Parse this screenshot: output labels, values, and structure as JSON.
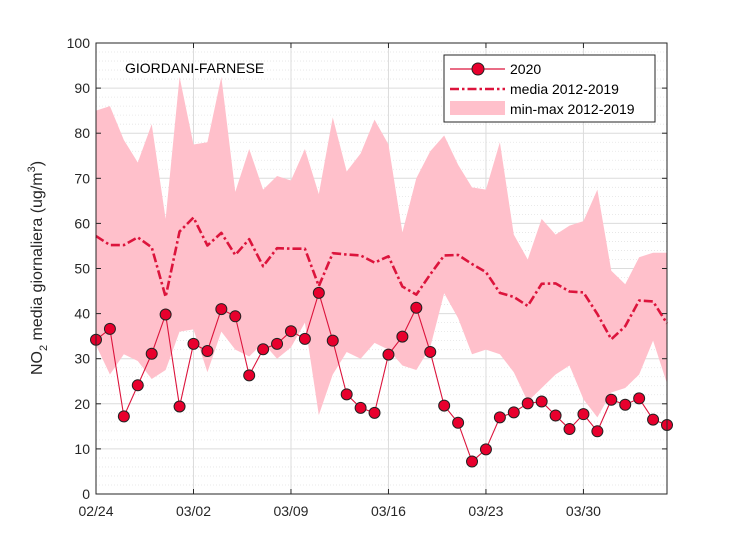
{
  "chart_data": {
    "type": "line",
    "title": "GIORDANI-FARNESE",
    "ylabel_parts": [
      "NO",
      "2",
      " media giornaliera (ug/m",
      "3",
      ")"
    ],
    "xlabel": "",
    "ylim": [
      0,
      100
    ],
    "yticks": [
      0,
      10,
      20,
      30,
      40,
      50,
      60,
      70,
      80,
      90,
      100
    ],
    "xlim": [
      "02/24",
      "04/05"
    ],
    "xticks": [
      {
        "date": "02/24",
        "label": "02/24"
      },
      {
        "date": "03/02",
        "label": "03/02"
      },
      {
        "date": "03/09",
        "label": "03/09"
      },
      {
        "date": "03/16",
        "label": "03/16"
      },
      {
        "date": "03/23",
        "label": "03/23"
      },
      {
        "date": "03/30",
        "label": "03/30"
      }
    ],
    "grid": true,
    "legend_position": "top-right",
    "colors": {
      "line_2020": "#dc143c",
      "marker_2020": "#e8002d",
      "mean": "#dc143c",
      "band": "#ffc0cb"
    },
    "x": [
      "02/24",
      "02/25",
      "02/26",
      "02/27",
      "02/28",
      "02/29",
      "03/01",
      "03/02",
      "03/03",
      "03/04",
      "03/05",
      "03/06",
      "03/07",
      "03/08",
      "03/09",
      "03/10",
      "03/11",
      "03/12",
      "03/13",
      "03/14",
      "03/15",
      "03/16",
      "03/17",
      "03/18",
      "03/19",
      "03/20",
      "03/21",
      "03/22",
      "03/23",
      "03/24",
      "03/25",
      "03/26",
      "03/27",
      "03/28",
      "03/29",
      "03/30",
      "03/31",
      "04/01",
      "04/02",
      "04/03",
      "04/04",
      "04/05"
    ],
    "series": [
      {
        "name": "2020",
        "style": "line-marker",
        "values": [
          34.2,
          36.6,
          17.2,
          24.1,
          31.1,
          39.8,
          19.4,
          33.3,
          31.7,
          41.0,
          39.4,
          26.3,
          32.1,
          33.3,
          36.1,
          34.4,
          44.6,
          34.0,
          22.1,
          19.1,
          18.0,
          30.9,
          34.9,
          41.3,
          31.5,
          19.6,
          15.8,
          7.2,
          9.9,
          17.0,
          18.1,
          20.1,
          20.5,
          17.4,
          14.4,
          17.7,
          13.9,
          20.9,
          19.8,
          21.2,
          16.5,
          15.3
        ]
      },
      {
        "name": "media 2012-2019",
        "style": "dash-dot",
        "values": [
          57.2,
          55.2,
          55.2,
          56.9,
          54.7,
          43.7,
          58.2,
          61.3,
          55.1,
          57.9,
          53.0,
          56.5,
          50.5,
          54.5,
          54.4,
          54.4,
          46.1,
          53.4,
          53.1,
          52.9,
          51.3,
          52.7,
          46.0,
          44.2,
          48.7,
          52.9,
          53.0,
          51.0,
          49.2,
          44.6,
          43.7,
          41.7,
          46.6,
          46.7,
          44.9,
          44.7,
          39.9,
          34.3,
          37.2,
          42.9,
          42.7,
          37.8
        ]
      },
      {
        "name": "min-max 2012-2019",
        "style": "band",
        "min": [
          33.0,
          26.5,
          31.0,
          29.5,
          25.5,
          27.5,
          36.0,
          36.5,
          27.0,
          36.0,
          32.0,
          30.5,
          33.5,
          30.0,
          32.5,
          38.0,
          17.5,
          26.5,
          31.5,
          30.0,
          33.5,
          32.0,
          28.5,
          27.5,
          32.5,
          44.5,
          39.0,
          31.0,
          32.0,
          31.0,
          27.0,
          20.5,
          23.5,
          26.5,
          28.5,
          21.0,
          17.0,
          22.5,
          23.5,
          26.5,
          34.0,
          24.5
        ],
        "max": [
          85.0,
          86.0,
          78.5,
          73.5,
          82.0,
          61.0,
          92.5,
          77.5,
          78.0,
          92.5,
          67.0,
          76.5,
          67.5,
          70.5,
          69.5,
          76.5,
          66.5,
          83.5,
          71.5,
          75.5,
          83.0,
          77.5,
          58.0,
          70.0,
          76.0,
          79.5,
          73.0,
          68.0,
          67.5,
          78.0,
          57.5,
          52.0,
          61.0,
          57.5,
          59.5,
          60.5,
          67.5,
          49.5,
          46.5,
          52.5,
          53.5,
          53.5
        ]
      }
    ]
  }
}
